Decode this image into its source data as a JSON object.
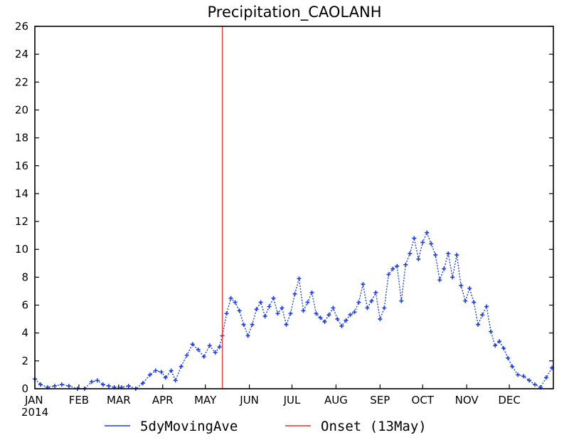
{
  "chart_data": {
    "type": "line",
    "title": "Precipitation_CAOLANH",
    "xlabel": "",
    "ylabel": "",
    "year_label": "2014",
    "x_ticks": [
      "JAN",
      "FEB",
      "MAR",
      "APR",
      "MAY",
      "JUN",
      "JUL",
      "AUG",
      "SEP",
      "OCT",
      "NOV",
      "DEC"
    ],
    "ylim": [
      0,
      26
    ],
    "y_ticks": [
      "0",
      "2",
      "4",
      "6",
      "8",
      "10",
      "12",
      "14",
      "16",
      "18",
      "20",
      "22",
      "24",
      "26"
    ],
    "grid": false,
    "legend_placement": "bottom",
    "series": [
      {
        "name": "5dyMovingAve",
        "color": "#1f3fe0",
        "marker": "plus",
        "x_dates": [
          "2014-01-01",
          "2014-01-05",
          "2014-01-10",
          "2014-01-15",
          "2014-01-20",
          "2014-01-25",
          "2014-01-31",
          "2014-02-05",
          "2014-02-10",
          "2014-02-14",
          "2014-02-18",
          "2014-02-22",
          "2014-02-26",
          "2014-03-03",
          "2014-03-08",
          "2014-03-13",
          "2014-03-18",
          "2014-03-23",
          "2014-03-27",
          "2014-03-31",
          "2014-04-03",
          "2014-04-07",
          "2014-04-10",
          "2014-04-14",
          "2014-04-18",
          "2014-04-22",
          "2014-04-26",
          "2014-04-30",
          "2014-05-04",
          "2014-05-08",
          "2014-05-11",
          "2014-05-13",
          "2014-05-16",
          "2014-05-19",
          "2014-05-22",
          "2014-05-25",
          "2014-05-28",
          "2014-05-31",
          "2014-06-03",
          "2014-06-06",
          "2014-06-09",
          "2014-06-12",
          "2014-06-15",
          "2014-06-18",
          "2014-06-21",
          "2014-06-24",
          "2014-06-27",
          "2014-06-30",
          "2014-07-03",
          "2014-07-06",
          "2014-07-09",
          "2014-07-12",
          "2014-07-15",
          "2014-07-18",
          "2014-07-21",
          "2014-07-24",
          "2014-07-27",
          "2014-07-30",
          "2014-08-02",
          "2014-08-05",
          "2014-08-08",
          "2014-08-11",
          "2014-08-14",
          "2014-08-17",
          "2014-08-20",
          "2014-08-23",
          "2014-08-26",
          "2014-08-29",
          "2014-09-01",
          "2014-09-04",
          "2014-09-07",
          "2014-09-10",
          "2014-09-13",
          "2014-09-16",
          "2014-09-19",
          "2014-09-22",
          "2014-09-25",
          "2014-09-28",
          "2014-10-01",
          "2014-10-04",
          "2014-10-07",
          "2014-10-10",
          "2014-10-13",
          "2014-10-16",
          "2014-10-19",
          "2014-10-22",
          "2014-10-25",
          "2014-10-28",
          "2014-10-31",
          "2014-11-03",
          "2014-11-06",
          "2014-11-09",
          "2014-11-12",
          "2014-11-15",
          "2014-11-18",
          "2014-11-21",
          "2014-11-24",
          "2014-11-27",
          "2014-11-30",
          "2014-12-03",
          "2014-12-07",
          "2014-12-11",
          "2014-12-15",
          "2014-12-19",
          "2014-12-23",
          "2014-12-27",
          "2014-12-31"
        ],
        "values": [
          0.7,
          0.3,
          0.1,
          0.2,
          0.3,
          0.2,
          0.0,
          0.0,
          0.5,
          0.6,
          0.3,
          0.2,
          0.1,
          0.1,
          0.2,
          0.0,
          0.4,
          1.0,
          1.3,
          1.2,
          0.8,
          1.3,
          0.6,
          1.6,
          2.4,
          3.2,
          2.8,
          2.3,
          3.1,
          2.6,
          3.0,
          3.8,
          5.4,
          6.5,
          6.2,
          5.6,
          4.6,
          3.8,
          4.6,
          5.7,
          6.2,
          5.2,
          5.9,
          6.5,
          5.4,
          5.8,
          4.6,
          5.4,
          6.8,
          7.9,
          5.6,
          6.2,
          6.9,
          5.4,
          5.1,
          4.8,
          5.3,
          5.8,
          5.0,
          4.5,
          4.9,
          5.3,
          5.5,
          6.2,
          7.5,
          5.8,
          6.3,
          6.9,
          5.0,
          5.8,
          8.2,
          8.6,
          8.8,
          6.3,
          8.9,
          9.7,
          10.8,
          9.3,
          10.5,
          11.2,
          10.4,
          9.6,
          7.8,
          8.6,
          9.7,
          8.0,
          9.6,
          7.4,
          6.3,
          7.2,
          6.2,
          4.6,
          5.3,
          5.9,
          4.1,
          3.1,
          3.4,
          2.9,
          2.2,
          1.6,
          1.0,
          0.9,
          0.6,
          0.3,
          0.1,
          0.8,
          1.5
        ]
      },
      {
        "name": "Onset (13May)",
        "color": "#e8302a",
        "type": "vline",
        "x_date": "2014-05-13"
      }
    ]
  }
}
